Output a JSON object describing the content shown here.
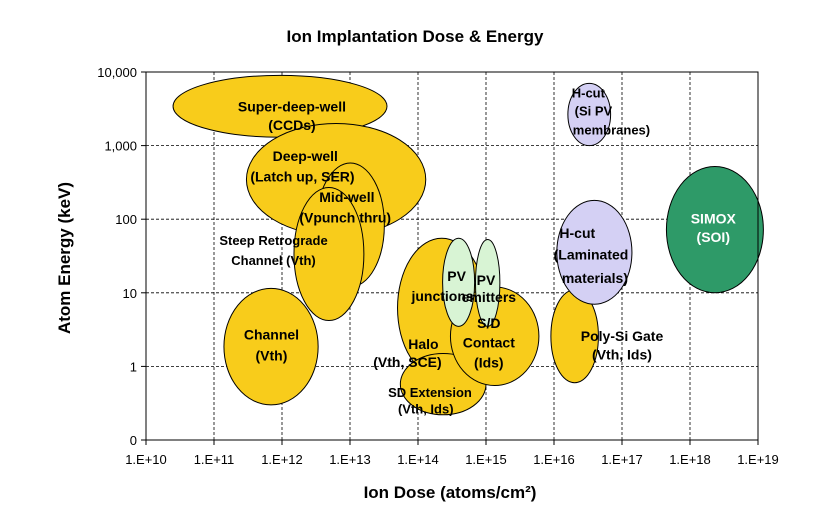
{
  "chart_data": {
    "type": "scatter",
    "title": "Ion Implantation Dose & Energy",
    "xlabel": "Ion Dose (atoms/cm²)",
    "ylabel": "Atom Energy (keV)",
    "x_scale": "log",
    "y_scale": "log",
    "xlim": [
      10000000000.0,
      1e+19
    ],
    "ylim": [
      0.1,
      10000
    ],
    "x_ticks": [
      10000000000.0,
      100000000000.0,
      1000000000000.0,
      10000000000000.0,
      100000000000000.0,
      1000000000000000.0,
      1e+16,
      1e+17,
      1e+18,
      1e+19
    ],
    "x_tick_labels": [
      "1.E+10",
      "1.E+11",
      "1.E+12",
      "1.E+13",
      "1.E+14",
      "1.E+15",
      "1.E+16",
      "1.E+17",
      "1.E+18",
      "1.E+19"
    ],
    "y_ticks": [
      0.1,
      1,
      10,
      100,
      1000,
      10000
    ],
    "y_tick_labels": [
      "0",
      "1",
      "10",
      "100",
      "1,000",
      "10,000"
    ],
    "grid": true,
    "colors": {
      "yellow": "#f8cc1b",
      "lavender": "#d4d0f4",
      "mint": "#d8f4d4",
      "green": "#2e9a68"
    },
    "regions": [
      {
        "label": [
          "Super-deep-well",
          "(CCDs)"
        ],
        "color": "yellow",
        "x_range": [
          25000000000.0,
          35000000000000.0
        ],
        "y_range": [
          1300,
          9000
        ],
        "labels_at": [
          [
            1400000000000.0,
            3400
          ],
          [
            1400000000000.0,
            1900
          ]
        ],
        "text_color": "black",
        "size": "big"
      },
      {
        "label": [
          "Deep-well",
          "(Latch up, SER)"
        ],
        "color": "yellow",
        "x_range": [
          300000000000.0,
          130000000000000.0
        ],
        "y_range": [
          60,
          2000
        ],
        "labels_at": [
          [
            2200000000000.0,
            720
          ],
          [
            2000000000000.0,
            380
          ]
        ],
        "text_color": "black",
        "size": "big"
      },
      {
        "label": [
          "Mid-well",
          "(Vpunch thru)"
        ],
        "color": "yellow",
        "x_range": [
          3200000000000.0,
          32000000000000.0
        ],
        "y_range": [
          12,
          580
        ],
        "labels_at": [
          [
            9000000000000.0,
            200
          ],
          [
            8500000000000.0,
            105
          ]
        ],
        "text_color": "black",
        "size": "big"
      },
      {
        "label": [
          "Steep Retrograde",
          "Channel (Vth)"
        ],
        "color": "yellow",
        "x_range": [
          1500000000000.0,
          16000000000000.0
        ],
        "y_range": [
          4.2,
          270
        ],
        "labels_at": [
          [
            750000000000.0,
            52
          ],
          [
            750000000000.0,
            28
          ]
        ],
        "text_color": "black",
        "size": "small"
      },
      {
        "label": [
          "Channel",
          "(Vth)"
        ],
        "color": "yellow",
        "x_range": [
          140000000000.0,
          3400000000000.0
        ],
        "y_range": [
          0.3,
          11.5
        ],
        "labels_at": [
          [
            700000000000.0,
            2.7
          ],
          [
            700000000000.0,
            1.4
          ]
        ],
        "text_color": "black",
        "size": "big"
      },
      {
        "label": [
          "Halo",
          "(Vth, SCE)"
        ],
        "color": "yellow",
        "x_range": [
          50000000000000.0,
          1000000000000000.0
        ],
        "y_range": [
          0.7,
          55
        ],
        "labels_at": [
          [
            120000000000000.0,
            2.0
          ],
          [
            70000000000000.0,
            1.15
          ]
        ],
        "text_color": "black",
        "size": "big"
      },
      {
        "label": [
          "SD Extension",
          "(Vth, Ids)"
        ],
        "color": "yellow",
        "x_range": [
          55000000000000.0,
          1000000000000000.0
        ],
        "y_range": [
          0.22,
          1.5
        ],
        "labels_at": [
          [
            150000000000000.0,
            0.45
          ],
          [
            130000000000000.0,
            0.27
          ]
        ],
        "text_color": "black",
        "size": "small"
      },
      {
        "label": [
          "S/D",
          "Contact",
          "(Ids)"
        ],
        "color": "yellow",
        "x_range": [
          300000000000000.0,
          6000000000000000.0
        ],
        "y_range": [
          0.55,
          12
        ],
        "labels_at": [
          [
            1100000000000000.0,
            3.9
          ],
          [
            1100000000000000.0,
            2.1
          ],
          [
            1100000000000000.0,
            1.13
          ]
        ],
        "text_color": "black",
        "size": "big"
      },
      {
        "label": [
          "PV",
          "junctions"
        ],
        "color": "mint",
        "x_range": [
          230000000000000.0,
          680000000000000.0
        ],
        "y_range": [
          3.5,
          55
        ],
        "labels_at": [
          [
            370000000000000.0,
            17
          ],
          [
            230000000000000.0,
            9
          ]
        ],
        "text_color": "black",
        "size": "big"
      },
      {
        "label": [
          "PV",
          "emitters"
        ],
        "color": "mint",
        "x_range": [
          700000000000000.0,
          1600000000000000.0
        ],
        "y_range": [
          3.5,
          53
        ],
        "labels_at": [
          [
            1000000000000000.0,
            15
          ],
          [
            1100000000000000.0,
            8.8
          ]
        ],
        "text_color": "black",
        "size": "big"
      },
      {
        "label": [
          "Poly-Si Gate",
          "(Vth, Ids)"
        ],
        "color": "yellow",
        "x_range": [
          9000000000000000.0,
          4.5e+16
        ],
        "y_range": [
          0.6,
          11
        ],
        "labels_at": [
          [
            1e+17,
            2.6
          ],
          [
            1e+17,
            1.45
          ]
        ],
        "text_color": "black",
        "size": "big"
      },
      {
        "label": [
          "H-cut",
          "(Laminated",
          "materials)"
        ],
        "color": "lavender",
        "x_range": [
          1.1e+16,
          1.4e+17
        ],
        "y_range": [
          7,
          180
        ],
        "labels_at": [
          [
            2.2e+16,
            65
          ],
          [
            3.5e+16,
            33
          ],
          [
            4e+16,
            16
          ]
        ],
        "text_color": "black",
        "size": "big"
      },
      {
        "label": [
          "H-cut",
          "(Si PV",
          "membranes)"
        ],
        "color": "lavender",
        "x_range": [
          1.6e+16,
          6.8e+16
        ],
        "y_range": [
          1000,
          7000
        ],
        "labels_at": [
          [
            3.2e+16,
            5300
          ],
          [
            3.8e+16,
            3000
          ],
          [
            7e+16,
            1650
          ]
        ],
        "text_color": "black",
        "size": "small"
      },
      {
        "label": [
          "SIMOX",
          "(SOI)"
        ],
        "color": "green",
        "x_range": [
          4.5e+17,
          1.2e+19
        ],
        "y_range": [
          10,
          520
        ],
        "labels_at": [
          [
            2.2e+18,
            103
          ],
          [
            2.2e+18,
            57
          ]
        ],
        "text_color": "white",
        "size": "big"
      }
    ]
  }
}
